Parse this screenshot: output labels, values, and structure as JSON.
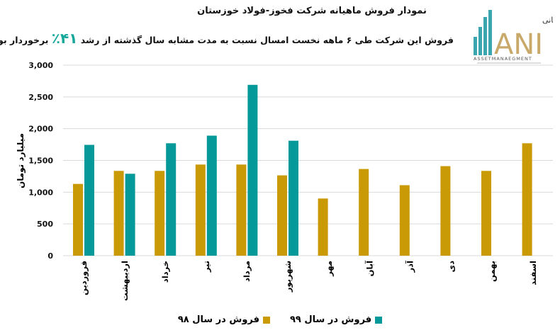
{
  "header": {
    "title": "نمودار فروش ماهیانه شرکت فخوز-فولاد  خوزستان",
    "subtitle_before": "فروش این شرکت طی ۶ ماهه نخست امسال نسبت به مدت مشابه سال گذشته از رشد",
    "subtitle_pct": "۴۱٪",
    "subtitle_after": "برخوردار بوده است."
  },
  "logo": {
    "fa": "سبدگردان مانی",
    "en": "ANI",
    "tag": "ASSETMANAEGMENT",
    "teal": "#3aa7b0",
    "gold": "#c8a96a"
  },
  "chart_data": {
    "type": "bar",
    "title": "نمودار فروش ماهیانه شرکت فخوز-فولاد  خوزستان",
    "ylabel": "میلیارد تومان",
    "xlabel": "",
    "ylim": [
      0,
      3000
    ],
    "yticks": [
      0,
      500,
      1000,
      1500,
      2000,
      2500,
      3000
    ],
    "ytick_labels": [
      "0",
      "500",
      "1,000",
      "1,500",
      "2,000",
      "2,500",
      "3,000"
    ],
    "grid": true,
    "legend_position": "bottom",
    "categories": [
      "فروردین",
      "اردیبهشت",
      "خرداد",
      "تیر",
      "مرداد",
      "شهریور",
      "مهر",
      "آبان",
      "آذر",
      "دی",
      "بهمن",
      "اسفند"
    ],
    "series": [
      {
        "name": "فروش در سال ۹۸",
        "color": "#c99a06",
        "values": [
          1130,
          1335,
          1335,
          1435,
          1435,
          1265,
          900,
          1365,
          1110,
          1410,
          1335,
          1770
        ]
      },
      {
        "name": "فروش در سال ۹۹",
        "color": "#05999a",
        "values": [
          1745,
          1290,
          1770,
          1890,
          2690,
          1810,
          null,
          null,
          null,
          null,
          null,
          null
        ]
      }
    ]
  }
}
